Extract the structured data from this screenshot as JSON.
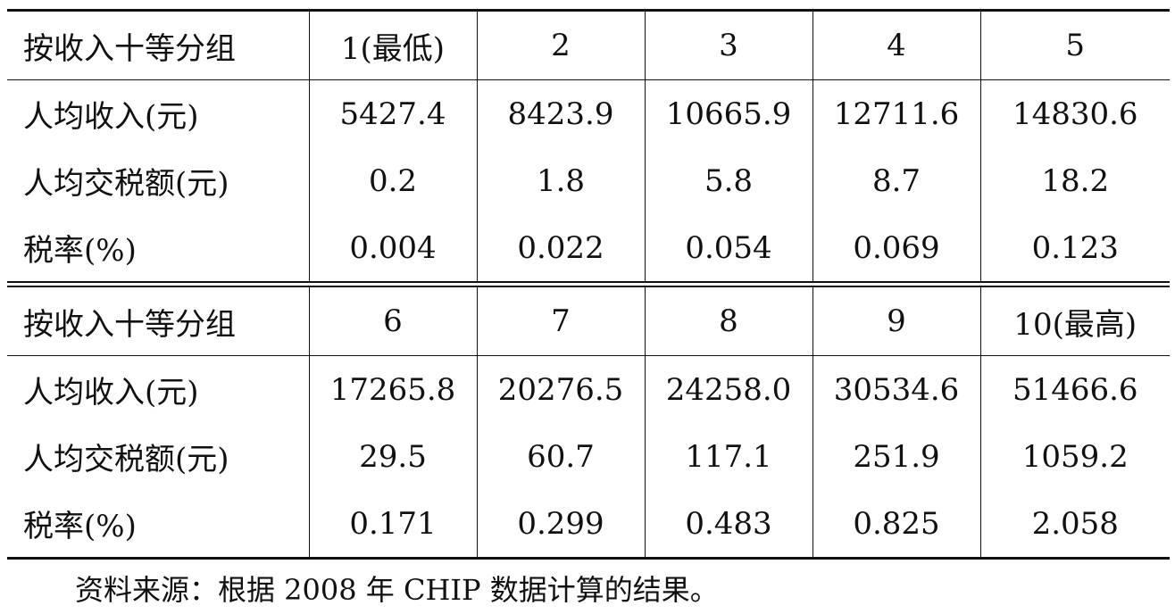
{
  "table": {
    "block1": {
      "header": [
        "按收入十等分组",
        "1(最低)",
        "2",
        "3",
        "4",
        "5"
      ],
      "rows": [
        [
          "人均收入(元)",
          "5427.4",
          "8423.9",
          "10665.9",
          "12711.6",
          "14830.6"
        ],
        [
          "人均交税额(元)",
          "0.2",
          "1.8",
          "5.8",
          "8.7",
          "18.2"
        ],
        [
          "税率(%)",
          "0.004",
          "0.022",
          "0.054",
          "0.069",
          "0.123"
        ]
      ]
    },
    "block2": {
      "header": [
        "按收入十等分组",
        "6",
        "7",
        "8",
        "9",
        "10(最高)"
      ],
      "rows": [
        [
          "人均收入(元)",
          "17265.8",
          "20276.5",
          "24258.0",
          "30534.6",
          "51466.6"
        ],
        [
          "人均交税额(元)",
          "29.5",
          "60.7",
          "117.1",
          "251.9",
          "1059.2"
        ],
        [
          "税率(%)",
          "0.171",
          "0.299",
          "0.483",
          "0.825",
          "2.058"
        ]
      ]
    }
  },
  "note": "资料来源：根据 2008 年 CHIP 数据计算的结果。"
}
